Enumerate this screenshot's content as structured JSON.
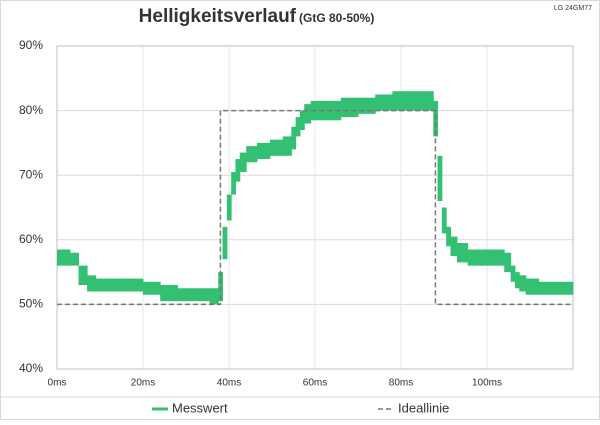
{
  "chart_data": {
    "type": "line",
    "title": "Helligkeitsverlauf",
    "subtitle": "(GtG 80-50%)",
    "annotation": "LG 24GM77",
    "xlim": [
      0,
      120
    ],
    "xticks": [
      {
        "value": 0,
        "label": "0ms"
      },
      {
        "value": 20,
        "label": "20ms"
      },
      {
        "value": 40,
        "label": "40ms"
      },
      {
        "value": 60,
        "label": "60ms"
      },
      {
        "value": 80,
        "label": "80ms"
      },
      {
        "value": 100,
        "label": "100ms"
      }
    ],
    "ylim": [
      40,
      90
    ],
    "yticks": [
      {
        "value": 40,
        "label": "40%"
      },
      {
        "value": 50,
        "label": "50%"
      },
      {
        "value": 60,
        "label": "60%"
      },
      {
        "value": 70,
        "label": "70%"
      },
      {
        "value": 80,
        "label": "80%"
      },
      {
        "value": 90,
        "label": "90%"
      }
    ],
    "grid": true,
    "legend": "bottom",
    "series": [
      {
        "name": "Messwert",
        "color": "#33c072",
        "x": [
          0,
          2,
          4,
          6,
          8,
          10,
          14,
          18,
          22,
          26,
          30,
          34,
          37,
          38,
          39,
          40,
          41,
          42,
          43,
          45,
          48,
          51,
          54,
          55,
          56,
          57,
          58,
          60,
          64,
          68,
          72,
          76,
          80,
          84,
          87,
          88,
          89,
          90,
          91,
          92,
          94,
          97,
          100,
          103,
          105,
          106,
          107,
          108,
          110,
          114,
          118,
          120
        ],
        "lower": [
          56,
          56,
          56,
          53,
          52,
          52,
          52,
          52,
          51.5,
          50.5,
          50.5,
          50.5,
          50,
          50.5,
          57,
          63,
          67,
          69,
          70.5,
          72,
          72.5,
          73,
          73,
          74,
          76,
          77,
          78,
          78.5,
          78.5,
          79,
          79.5,
          80,
          80,
          80,
          80,
          76,
          66,
          61,
          59,
          57.5,
          56.5,
          56,
          56,
          56,
          55,
          53.5,
          52.5,
          52,
          51.5,
          51.5,
          51.5,
          51.5
        ],
        "upper": [
          58.5,
          58.5,
          58,
          56,
          54.5,
          54,
          54,
          54,
          53.5,
          53,
          52.5,
          52.5,
          52.5,
          55,
          62,
          67,
          70.5,
          72.5,
          73.5,
          74.5,
          75,
          75.5,
          76,
          77.5,
          79,
          80,
          81,
          81.5,
          81.5,
          82,
          82,
          82.5,
          83,
          83,
          83,
          81.5,
          73,
          65,
          62,
          60.5,
          59.5,
          58.5,
          58.5,
          58.5,
          58,
          56,
          55,
          54.5,
          54,
          53.5,
          53.5,
          53.5
        ]
      },
      {
        "name": "Ideallinie",
        "color": "#777777",
        "dashed": true,
        "x": [
          0,
          38,
          38,
          88,
          88,
          120
        ],
        "values": [
          50,
          50,
          80,
          80,
          50,
          50
        ]
      }
    ]
  }
}
